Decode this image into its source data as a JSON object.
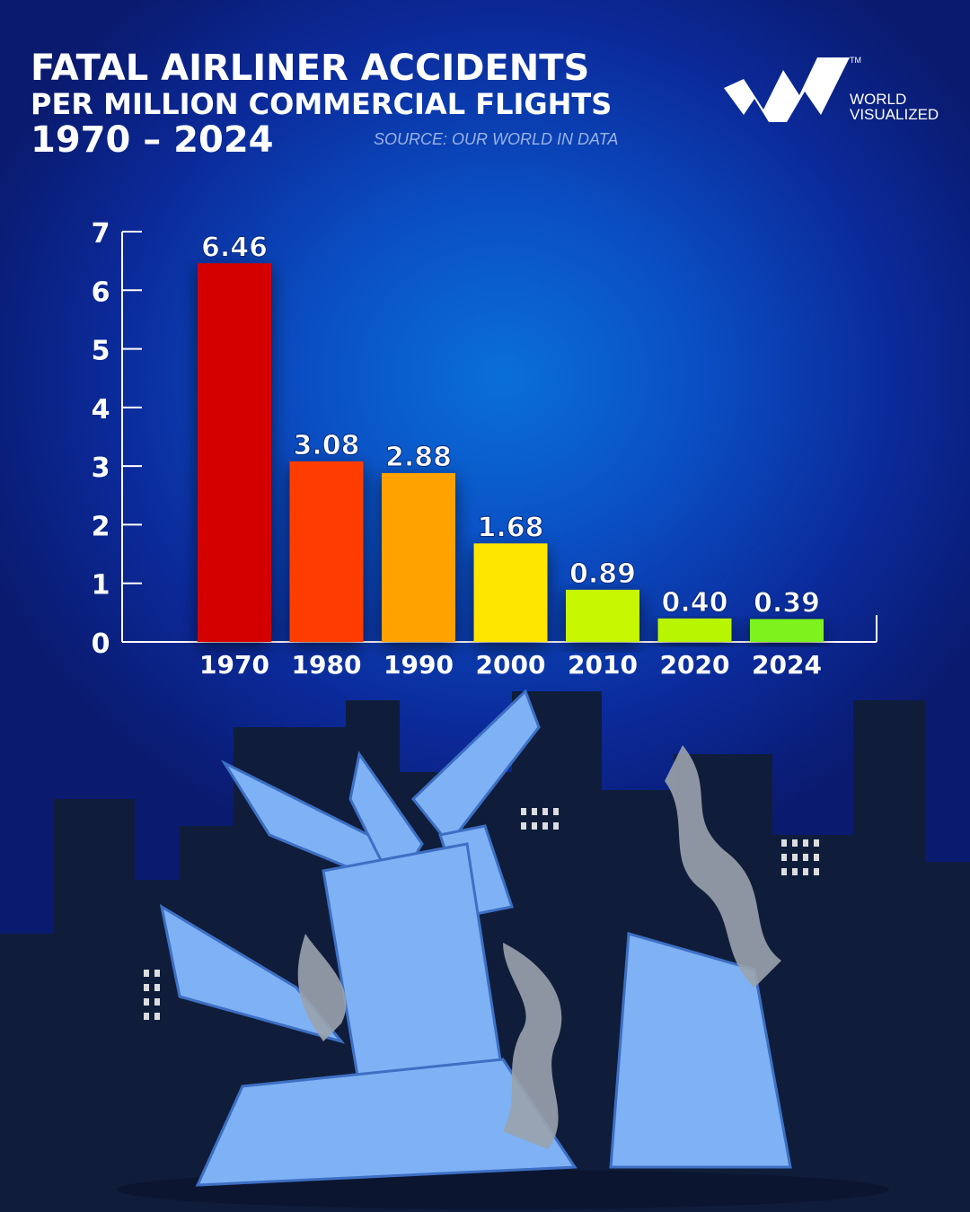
{
  "header": {
    "title_line1": "FATAL AIRLINER ACCIDENTS",
    "title_line2": "PER MILLION COMMERCIAL FLIGHTS",
    "title_line3": "1970 – 2024",
    "source": "SOURCE: OUR WORLD IN DATA"
  },
  "brand": {
    "name_line1": "WORLD",
    "name_line2": "VISUALIZED",
    "trademark": "TM"
  },
  "chart_data": {
    "type": "bar",
    "categories": [
      "1970",
      "1980",
      "1990",
      "2000",
      "2010",
      "2020",
      "2024"
    ],
    "values": [
      6.46,
      3.08,
      2.88,
      1.68,
      0.89,
      0.4,
      0.39
    ],
    "value_labels": [
      "6.46",
      "3.08",
      "2.88",
      "1.68",
      "0.89",
      "0.40",
      "0.39"
    ],
    "bar_colors": [
      "#d40000",
      "#ff3c00",
      "#ffa200",
      "#ffe600",
      "#c6f700",
      "#b8f500",
      "#7ef21a"
    ],
    "ylim": [
      0,
      7
    ],
    "yticks": [
      "0",
      "1",
      "2",
      "3",
      "4",
      "5",
      "6",
      "7"
    ],
    "grid": false,
    "legend": "none"
  }
}
